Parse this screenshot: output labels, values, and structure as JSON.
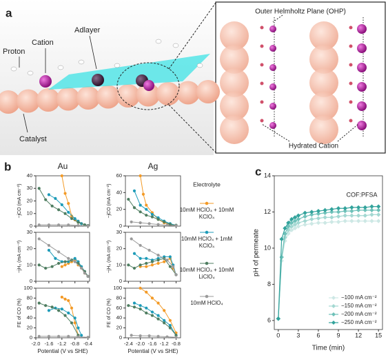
{
  "panel_labels": [
    "a",
    "b",
    "c"
  ],
  "illustration": {
    "proton": "Proton",
    "cation": "Cation",
    "adlayer": "Adlayer",
    "catalyst": "Catalyst",
    "ohp": "Outer Helmholtz Plane (OHP)",
    "hydrated_cation": "Hydrated Cation"
  },
  "chart_data": [
    {
      "type": "line",
      "title": "Au",
      "ylabel": "−jCO (mA cm⁻²)",
      "legend_title": "Electrolyte",
      "xlim": [
        -2.0,
        -0.35
      ],
      "xticks": [
        {
          "value": -2.0,
          "label": "-2.0"
        },
        -1.6,
        -1.2,
        -0.8,
        -0.4
      ],
      "ylim": [
        0,
        40
      ],
      "yticks": [
        0,
        10,
        20,
        30,
        40
      ],
      "series": [
        {
          "name": "10mM HClO₄ + 10mM KClO₄",
          "color": "#f39a26",
          "x": [
            -1.2,
            -1.1,
            -1.0,
            -0.9,
            -0.8,
            -0.7,
            -0.6,
            -0.5,
            -0.4
          ],
          "values": [
            40,
            26,
            18,
            8,
            5,
            3,
            2,
            1,
            0.5
          ]
        },
        {
          "name": "10mM HClO₄ + 1mM KClO₄",
          "color": "#1d9bb8",
          "x": [
            -1.6,
            -1.4,
            -1.2,
            -1.0,
            -0.8,
            -0.7,
            -0.6,
            -0.5,
            -0.4
          ],
          "values": [
            25,
            22,
            17,
            11,
            6,
            4,
            2,
            1,
            0.5
          ]
        },
        {
          "name": "10mM HClO₄ + 10mM LiClO₄",
          "color": "#4e7d60",
          "x": [
            -1.9,
            -1.7,
            -1.5,
            -1.3,
            -1.1,
            -0.9,
            -0.7,
            -0.5,
            -0.4
          ],
          "values": [
            30,
            21,
            16,
            13,
            10,
            6,
            3,
            1,
            0.5
          ]
        },
        {
          "name": "10mM HClO₄",
          "color": "#9a9a9a",
          "x": [
            -1.9,
            -1.6,
            -1.3,
            -1.0,
            -0.7,
            -0.4
          ],
          "values": [
            1,
            1,
            1,
            1,
            0.5,
            0.3
          ]
        }
      ]
    },
    {
      "type": "line",
      "title": "Ag",
      "ylabel": "−jCO (mA cm⁻²)",
      "xlim": [
        -2.5,
        -0.65
      ],
      "xticks": [
        -2.4,
        {
          "value": -2.0,
          "label": "-2.0"
        },
        -1.6,
        -1.2,
        -0.8
      ],
      "ylim": [
        0,
        60
      ],
      "yticks": [
        0,
        20,
        40,
        60
      ],
      "series": [
        {
          "color": "#f39a26",
          "x": [
            -2.0,
            -1.9,
            -1.8,
            -1.6,
            -1.4,
            -1.2,
            -1.0,
            -0.8
          ],
          "values": [
            60,
            38,
            25,
            16,
            8,
            4,
            2,
            1
          ]
        },
        {
          "color": "#1d9bb8",
          "x": [
            -2.2,
            -2.0,
            -1.8,
            -1.6,
            -1.4,
            -1.2,
            -1.0,
            -0.8
          ],
          "values": [
            42,
            25,
            20,
            14,
            10,
            6,
            3,
            1
          ]
        },
        {
          "color": "#4e7d60",
          "x": [
            -2.4,
            -2.2,
            -2.0,
            -1.8,
            -1.6,
            -1.4,
            -1.2,
            -1.0,
            -0.8
          ],
          "values": [
            32,
            22,
            17,
            13,
            11,
            8,
            5,
            2,
            1
          ]
        },
        {
          "color": "#9a9a9a",
          "x": [
            -2.3,
            -2.0,
            -1.7,
            -1.4,
            -1.1,
            -0.8
          ],
          "values": [
            5,
            4,
            3,
            2,
            1,
            0.5
          ]
        }
      ]
    },
    {
      "type": "line",
      "ylabel": "−jH₂ (mA cm⁻²)",
      "xlim": [
        -2.0,
        -0.35
      ],
      "xticks": [
        {
          "value": -2.0,
          "label": "-2.0"
        },
        -1.6,
        -1.2,
        -0.8,
        -0.4
      ],
      "ylim": [
        0,
        30
      ],
      "yticks": [
        0,
        10,
        20,
        30
      ],
      "series": [
        {
          "color": "#f39a26",
          "x": [
            -1.2,
            -1.1,
            -1.0,
            -0.9,
            -0.8,
            -0.7,
            -0.6,
            -0.5,
            -0.4
          ],
          "values": [
            9,
            10,
            11,
            12,
            13,
            10,
            8,
            5,
            3
          ]
        },
        {
          "color": "#1d9bb8",
          "x": [
            -1.6,
            -1.4,
            -1.2,
            -1.0,
            -0.9,
            -0.8,
            -0.7,
            -0.6,
            -0.5,
            -0.4
          ],
          "values": [
            19,
            14,
            12,
            12,
            13,
            14,
            12,
            9,
            6,
            3
          ]
        },
        {
          "color": "#4e7d60",
          "x": [
            -1.9,
            -1.7,
            -1.5,
            -1.3,
            -1.1,
            -0.9,
            -0.7,
            -0.5,
            -0.4
          ],
          "values": [
            10,
            8,
            9,
            11,
            12,
            13,
            11,
            6,
            3
          ]
        },
        {
          "color": "#9a9a9a",
          "x": [
            -1.9,
            -1.6,
            -1.3,
            -1.0,
            -0.8,
            -0.6,
            -0.5,
            -0.4
          ],
          "values": [
            26,
            22,
            18,
            14,
            12,
            8,
            5,
            3
          ]
        }
      ]
    },
    {
      "type": "line",
      "ylabel": "−jH₂ (mA cm⁻²)",
      "xlim": [
        -2.5,
        -0.65
      ],
      "xticks": [
        -2.4,
        {
          "value": -2.0,
          "label": "-2.0"
        },
        -1.6,
        -1.2,
        -0.8
      ],
      "ylim": [
        0,
        30
      ],
      "yticks": [
        0,
        10,
        20,
        30
      ],
      "series": [
        {
          "color": "#f39a26",
          "x": [
            -2.0,
            -1.8,
            -1.6,
            -1.4,
            -1.2,
            -1.0,
            -0.9,
            -0.8
          ],
          "values": [
            9,
            9,
            10,
            11,
            12,
            14,
            8,
            4
          ]
        },
        {
          "color": "#1d9bb8",
          "x": [
            -2.2,
            -2.0,
            -1.8,
            -1.6,
            -1.4,
            -1.2,
            -1.0,
            -0.9,
            -0.8
          ],
          "values": [
            17,
            14,
            14,
            13,
            14,
            15,
            15,
            10,
            4
          ]
        },
        {
          "color": "#4e7d60",
          "x": [
            -2.4,
            -2.2,
            -2.0,
            -1.8,
            -1.6,
            -1.4,
            -1.2,
            -1.0,
            -0.8
          ],
          "values": [
            10,
            8,
            10,
            11,
            12,
            13,
            14,
            9,
            4
          ]
        },
        {
          "color": "#9a9a9a",
          "x": [
            -2.3,
            -2.0,
            -1.7,
            -1.4,
            -1.1,
            -0.9,
            -0.8
          ],
          "values": [
            26,
            22,
            19,
            16,
            13,
            9,
            4
          ]
        }
      ]
    },
    {
      "type": "line",
      "ylabel": "FE of CO (%)",
      "xlabel": "Potential (V vs SHE)",
      "xlim": [
        -2.0,
        -0.35
      ],
      "xticks": [
        {
          "value": -2.0,
          "label": "-2.0"
        },
        -1.6,
        -1.2,
        -0.8,
        -0.4
      ],
      "ylim": [
        0,
        100
      ],
      "yticks": [
        0,
        20,
        40,
        60,
        80,
        100
      ],
      "series": [
        {
          "color": "#f39a26",
          "x": [
            -1.2,
            -1.1,
            -1.0,
            -0.9,
            -0.8,
            -0.7
          ],
          "values": [
            82,
            78,
            75,
            60,
            30,
            5
          ]
        },
        {
          "color": "#1d9bb8",
          "x": [
            -1.6,
            -1.4,
            -1.2,
            -1.0,
            -0.8,
            -0.7,
            -0.6
          ],
          "values": [
            55,
            60,
            58,
            50,
            40,
            20,
            5
          ]
        },
        {
          "color": "#4e7d60",
          "x": [
            -1.9,
            -1.7,
            -1.5,
            -1.3,
            -1.1,
            -0.9,
            -0.7
          ],
          "values": [
            70,
            65,
            62,
            55,
            45,
            30,
            5
          ]
        },
        {
          "color": "#9a9a9a",
          "x": [
            -1.9,
            -1.6,
            -1.3,
            -1.0,
            -0.7,
            -0.4
          ],
          "values": [
            3,
            3,
            3,
            3,
            2,
            1
          ]
        }
      ]
    },
    {
      "type": "line",
      "ylabel": "FE of CO (%)",
      "xlabel": "Potential (V vs SHE)",
      "xlim": [
        -2.5,
        -0.65
      ],
      "xticks": [
        -2.4,
        {
          "value": -2.0,
          "label": "-2.0"
        },
        -1.6,
        -1.2,
        -0.8
      ],
      "ylim": [
        0,
        100
      ],
      "yticks": [
        0,
        20,
        40,
        60,
        80,
        100
      ],
      "series": [
        {
          "color": "#f39a26",
          "x": [
            -2.0,
            -1.8,
            -1.6,
            -1.4,
            -1.2,
            -1.0,
            -0.8
          ],
          "values": [
            100,
            92,
            80,
            70,
            55,
            35,
            10
          ]
        },
        {
          "color": "#1d9bb8",
          "x": [
            -2.2,
            -2.0,
            -1.8,
            -1.6,
            -1.4,
            -1.2,
            -1.0,
            -0.8
          ],
          "values": [
            70,
            65,
            60,
            52,
            45,
            35,
            25,
            5
          ]
        },
        {
          "color": "#4e7d60",
          "x": [
            -2.4,
            -2.2,
            -2.0,
            -1.8,
            -1.6,
            -1.4,
            -1.2,
            -1.0,
            -0.8
          ],
          "values": [
            65,
            62,
            58,
            50,
            45,
            38,
            30,
            20,
            5
          ]
        },
        {
          "color": "#9a9a9a",
          "x": [
            -2.3,
            -2.0,
            -1.7,
            -1.4,
            -1.1,
            -0.8
          ],
          "values": [
            5,
            4,
            4,
            3,
            2,
            1
          ]
        }
      ]
    },
    {
      "type": "line",
      "ylabel": "pH of permeate",
      "xlabel": "Time (min)",
      "annotation": "COF:PFSA",
      "legend": "lower right",
      "marker": "diamond",
      "xlim": [
        -0.6,
        15.6
      ],
      "xticks": [
        0,
        3,
        6,
        9,
        12,
        15
      ],
      "ylim": [
        5.5,
        14
      ],
      "yticks": [
        6,
        8,
        10,
        12,
        14
      ],
      "series": [
        {
          "name": "−100 mA cm⁻²",
          "color": "#cde8e5",
          "x": [
            0,
            0.5,
            1,
            1.5,
            2,
            2.5,
            3,
            4,
            5,
            6,
            7,
            8,
            9,
            10,
            11,
            12,
            13,
            14,
            15
          ],
          "values": [
            6.1,
            9.3,
            10.4,
            10.8,
            11.0,
            11.1,
            11.2,
            11.3,
            11.35,
            11.4,
            11.4,
            11.45,
            11.45,
            11.5,
            11.5,
            11.5,
            11.5,
            11.5,
            11.5
          ]
        },
        {
          "name": "−150 mA cm⁻²",
          "color": "#a3d8d2",
          "x": [
            0,
            0.5,
            1,
            1.5,
            2,
            2.5,
            3,
            4,
            5,
            6,
            7,
            8,
            9,
            10,
            11,
            12,
            13,
            14,
            15
          ],
          "values": [
            6.1,
            9.5,
            10.6,
            11.0,
            11.2,
            11.3,
            11.4,
            11.5,
            11.6,
            11.65,
            11.7,
            11.7,
            11.75,
            11.8,
            11.8,
            11.8,
            11.8,
            11.85,
            11.85
          ]
        },
        {
          "name": "−200 mA cm⁻²",
          "color": "#6ec1b9",
          "x": [
            0,
            0.5,
            1,
            1.5,
            2,
            2.5,
            3,
            4,
            5,
            6,
            7,
            8,
            9,
            10,
            11,
            12,
            13,
            14,
            15
          ],
          "values": [
            6.1,
            9.5,
            10.8,
            11.2,
            11.4,
            11.5,
            11.6,
            11.75,
            11.85,
            11.9,
            11.95,
            12.0,
            12.0,
            12.05,
            12.05,
            12.1,
            12.1,
            12.1,
            12.1
          ]
        },
        {
          "name": "−250 mA cm⁻²",
          "color": "#33a39c",
          "x": [
            0,
            0.5,
            1,
            1.5,
            2,
            2.5,
            3,
            4,
            5,
            6,
            7,
            8,
            9,
            10,
            11,
            12,
            13,
            14,
            15
          ],
          "values": [
            6.1,
            10.5,
            11.1,
            11.4,
            11.6,
            11.7,
            11.8,
            11.95,
            12.0,
            12.05,
            12.1,
            12.15,
            12.2,
            12.2,
            12.25,
            12.25,
            12.25,
            12.3,
            12.3
          ]
        }
      ]
    }
  ]
}
